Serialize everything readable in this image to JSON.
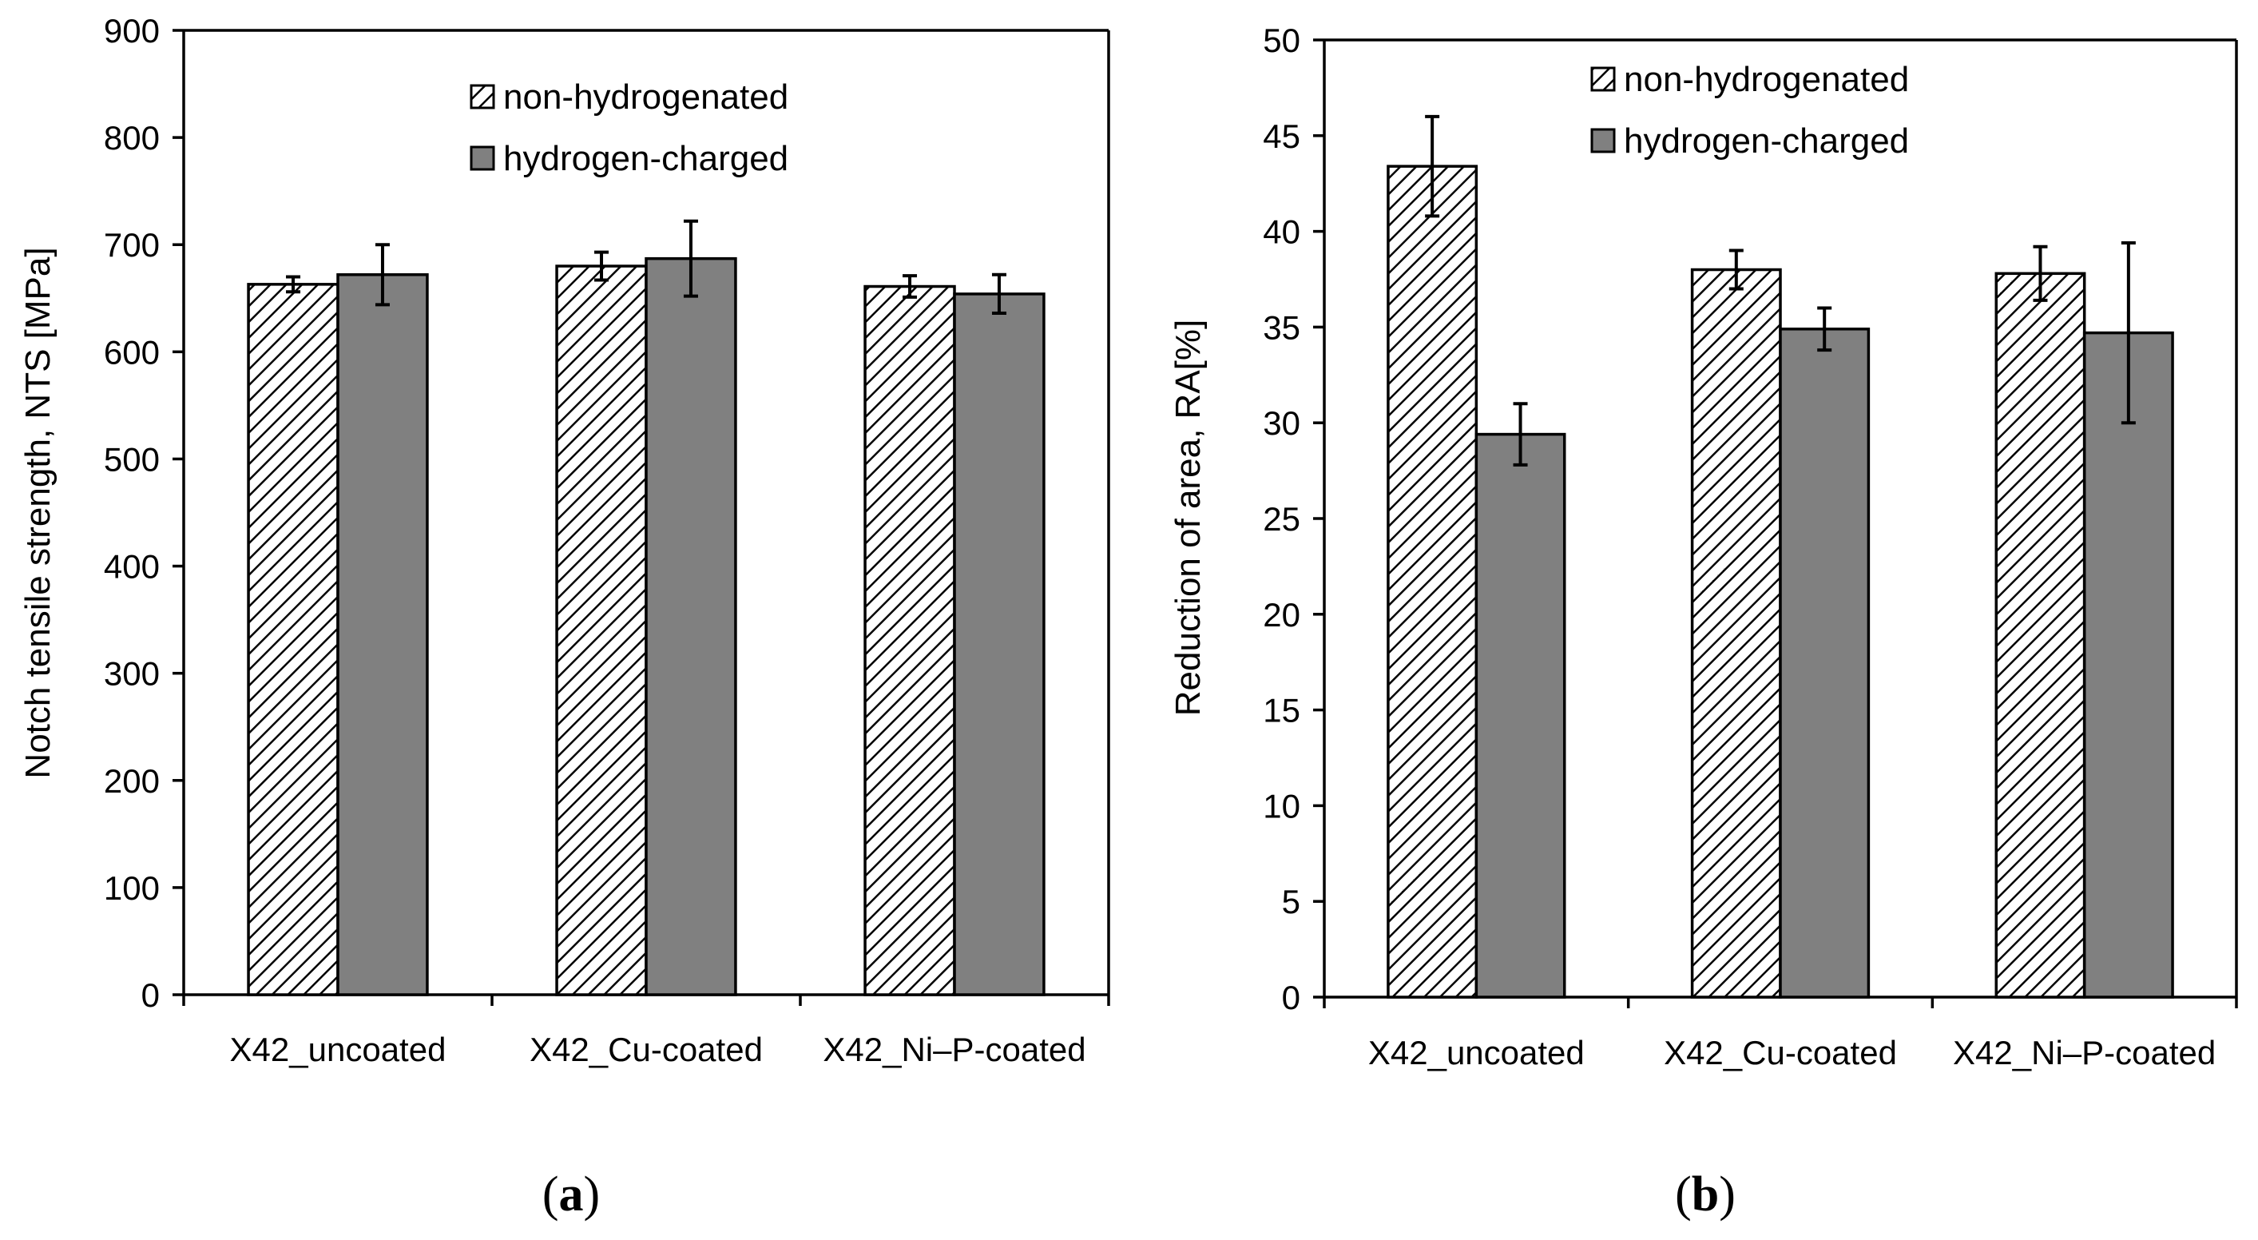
{
  "legend": {
    "series1": "non-hydrogenated",
    "series2": "hydrogen-charged"
  },
  "colors": {
    "hydrogen_charged_fill": "#808080",
    "hatch_line": "#000000",
    "axis": "#000000"
  },
  "panels": [
    {
      "letter": "a"
    },
    {
      "letter": "b"
    }
  ],
  "chart_data": [
    {
      "type": "bar",
      "panel": "(a)",
      "title": "",
      "xlabel": "",
      "ylabel": "Notch tensile strength, NTS [MPa]",
      "ylim": [
        0,
        900
      ],
      "yticks": [
        0,
        100,
        200,
        300,
        400,
        500,
        600,
        700,
        800,
        900
      ],
      "categories": [
        "X42_uncoated",
        "X42_Cu-coated",
        "X42_Ni–P-coated"
      ],
      "series": [
        {
          "name": "non-hydrogenated",
          "values": [
            663,
            680,
            661
          ],
          "errors": [
            7,
            13,
            10
          ]
        },
        {
          "name": "hydrogen-charged",
          "values": [
            672,
            687,
            654
          ],
          "errors": [
            28,
            35,
            18
          ]
        }
      ],
      "legend_position": "top-center"
    },
    {
      "type": "bar",
      "panel": "(b)",
      "title": "",
      "xlabel": "",
      "ylabel": "Reduction of area, RA[%]",
      "ylim": [
        0,
        50
      ],
      "yticks": [
        0,
        5,
        10,
        15,
        20,
        25,
        30,
        35,
        40,
        45,
        50
      ],
      "categories": [
        "X42_uncoated",
        "X42_Cu-coated",
        "X42_Ni–P-coated"
      ],
      "series": [
        {
          "name": "non-hydrogenated",
          "values": [
            43.4,
            38.0,
            37.8
          ],
          "errors": [
            2.6,
            1.0,
            1.4
          ]
        },
        {
          "name": "hydrogen-charged",
          "values": [
            29.4,
            34.9,
            34.7
          ],
          "errors": [
            1.6,
            1.1,
            4.7
          ]
        }
      ],
      "legend_position": "top-center"
    }
  ]
}
